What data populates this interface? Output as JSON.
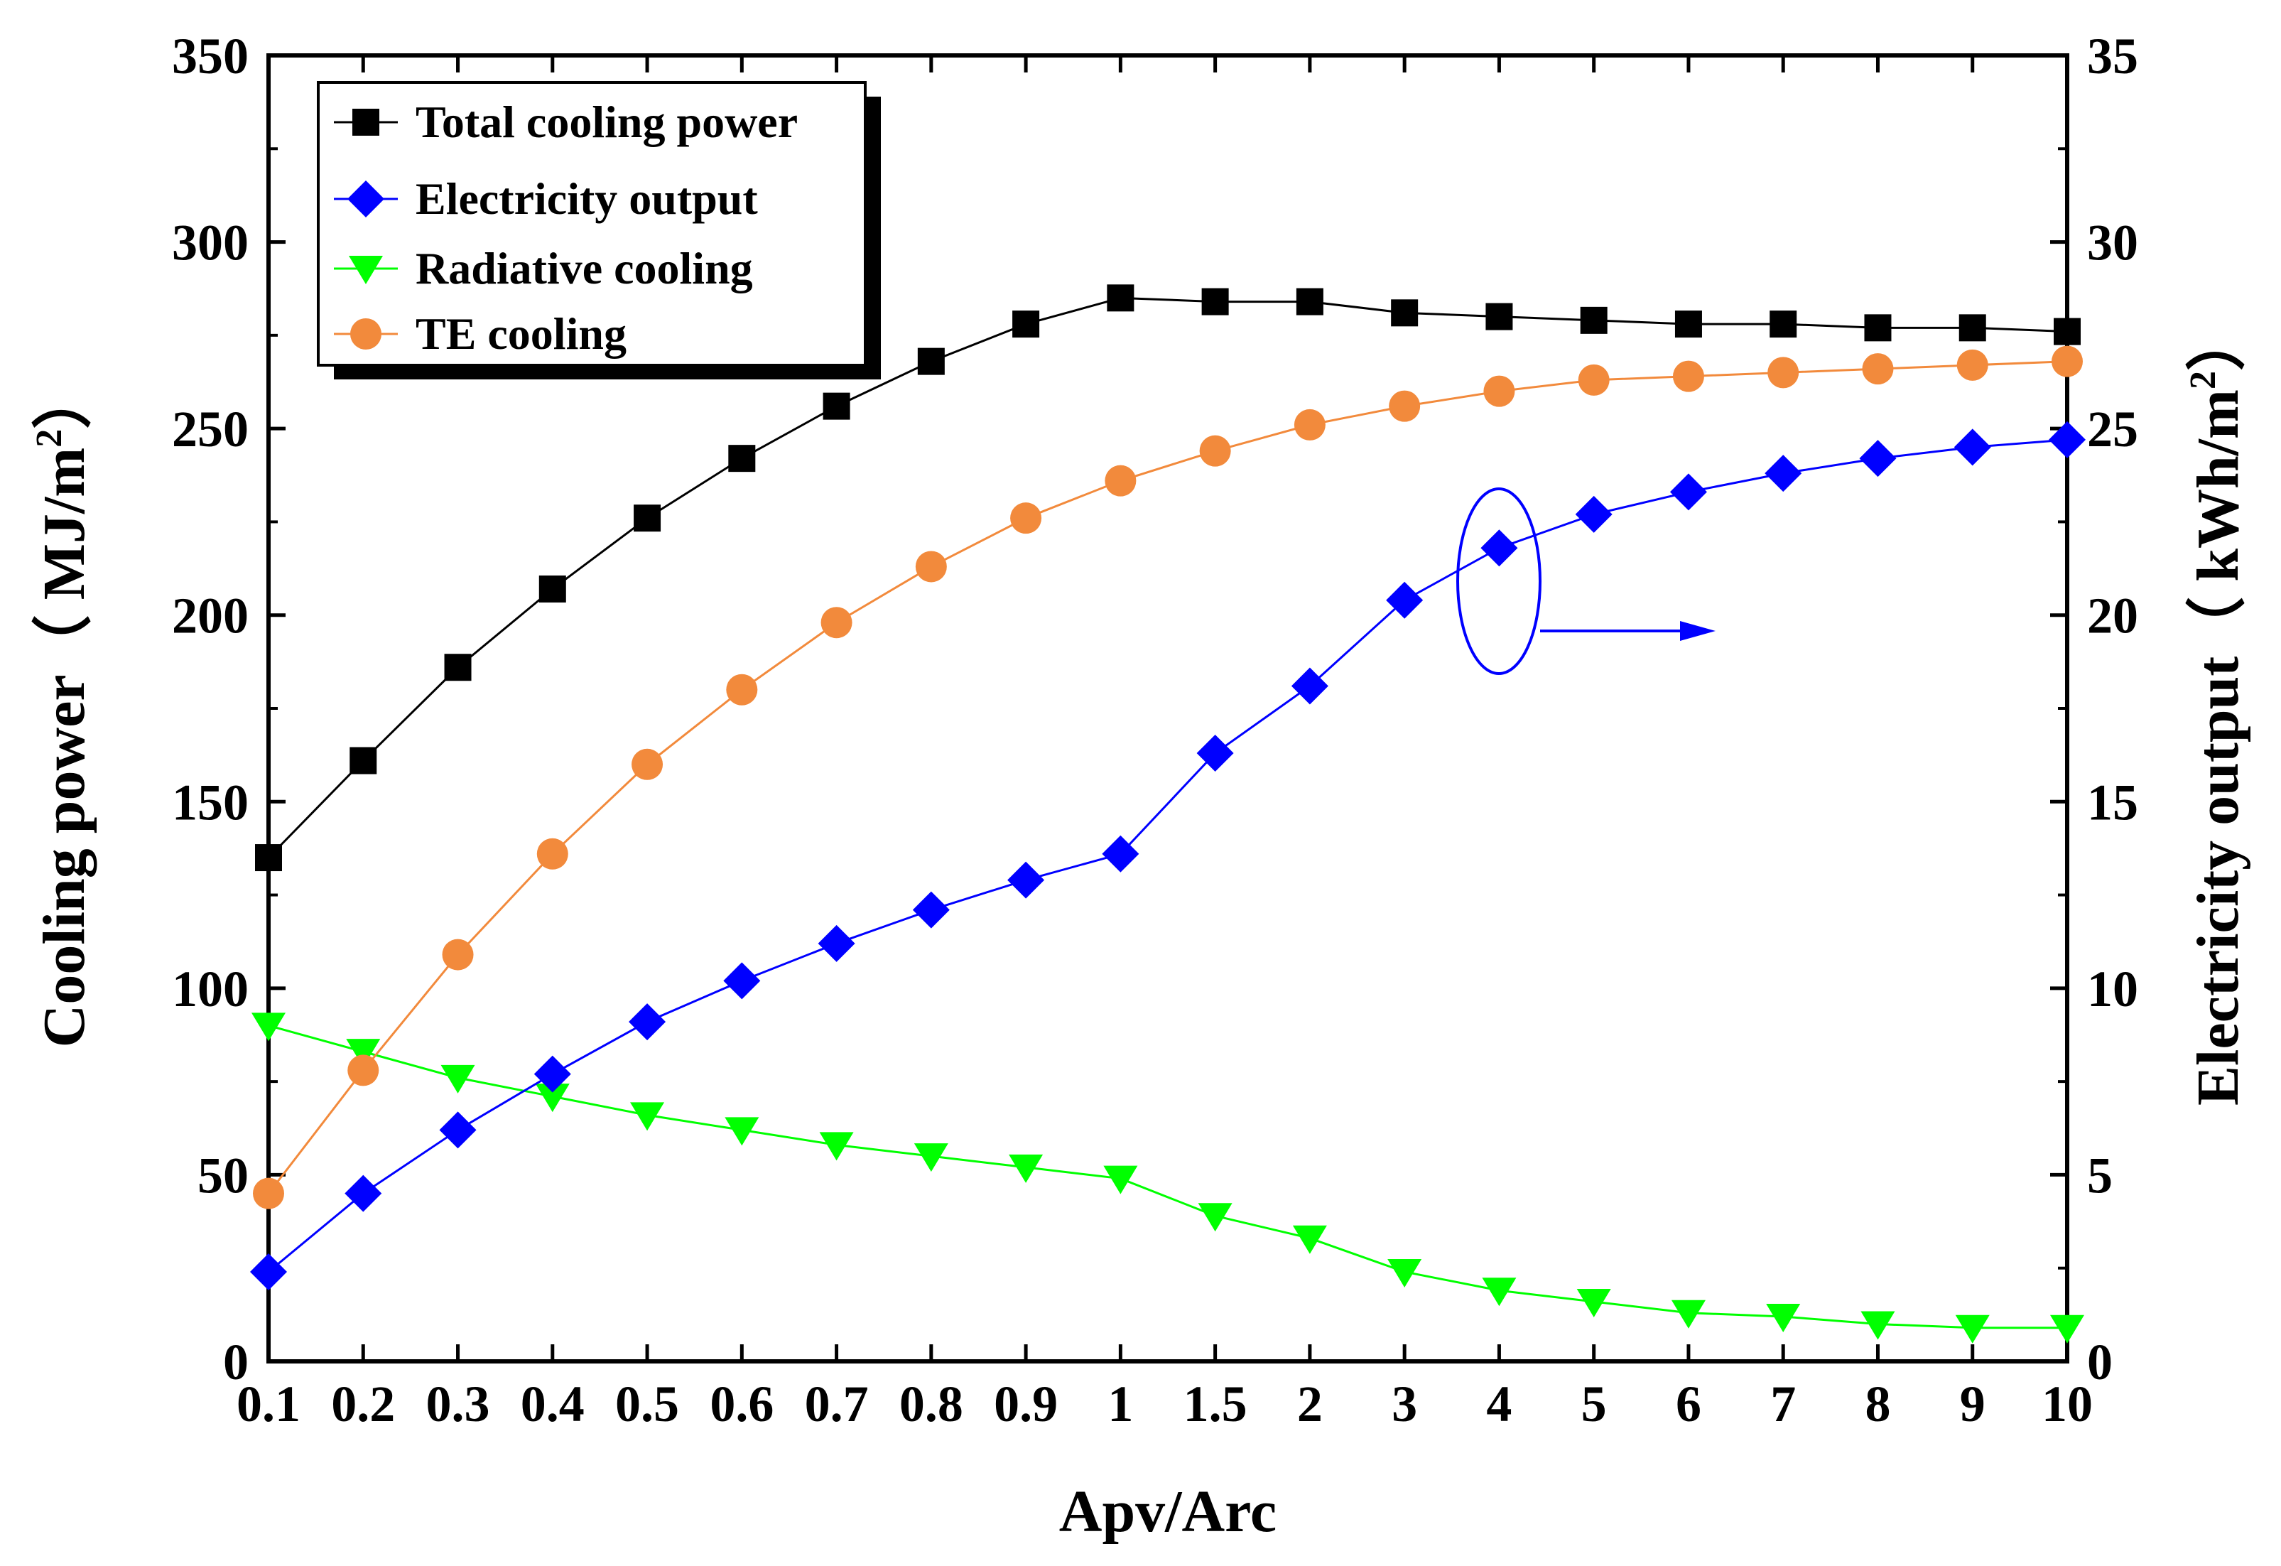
{
  "chart_data": {
    "type": "line",
    "categories": [
      "0.1",
      "0.2",
      "0.3",
      "0.4",
      "0.5",
      "0.6",
      "0.7",
      "0.8",
      "0.9",
      "1",
      "1.5",
      "2",
      "3",
      "4",
      "5",
      "6",
      "7",
      "8",
      "9",
      "10"
    ],
    "xlabel": "Apv/Arc",
    "ylabel": "Cooling power（ MJ/m",
    "ylabel_sup": "2",
    "ylabel_close": "）",
    "y2label": "Electricity output（ kWh/m",
    "y2label_sup": "2",
    "y2label_close": "）",
    "ylim": [
      0,
      350
    ],
    "y2lim": [
      0,
      35
    ],
    "yticks": [
      0,
      50,
      100,
      150,
      200,
      250,
      300,
      350
    ],
    "y2ticks": [
      0,
      5,
      10,
      15,
      20,
      25,
      30,
      35
    ],
    "legend_position": "top-left",
    "series": [
      {
        "name": "Total cooling power",
        "axis": "left",
        "marker": "square",
        "color": "#000000",
        "values": [
          135,
          161,
          186,
          207,
          226,
          242,
          256,
          268,
          278,
          285,
          284,
          284,
          281,
          280,
          279,
          278,
          278,
          277,
          277,
          276
        ]
      },
      {
        "name": "Electricity output",
        "axis": "right",
        "marker": "diamond",
        "color": "#0000ff",
        "values": [
          2.4,
          4.5,
          6.2,
          7.7,
          9.1,
          10.2,
          11.2,
          12.1,
          12.9,
          13.6,
          16.3,
          18.1,
          20.4,
          21.8,
          22.7,
          23.3,
          23.8,
          24.2,
          24.5,
          24.7
        ]
      },
      {
        "name": "Radiative cooling",
        "axis": "left",
        "marker": "triangle-down",
        "color": "#00ff00",
        "values": [
          90,
          83,
          76,
          71,
          66,
          62,
          58,
          55,
          52,
          49,
          39,
          33,
          24,
          19,
          16,
          13,
          12,
          10,
          9,
          9
        ]
      },
      {
        "name": "TE cooling",
        "axis": "left",
        "marker": "circle",
        "color": "#f28a3c",
        "values": [
          45,
          78,
          109,
          136,
          160,
          180,
          198,
          213,
          226,
          236,
          244,
          251,
          256,
          260,
          263,
          264,
          265,
          266,
          267,
          268
        ]
      }
    ],
    "annotation": {
      "target_series": "Electricity output",
      "category": "4",
      "direction": "right-axis"
    }
  }
}
